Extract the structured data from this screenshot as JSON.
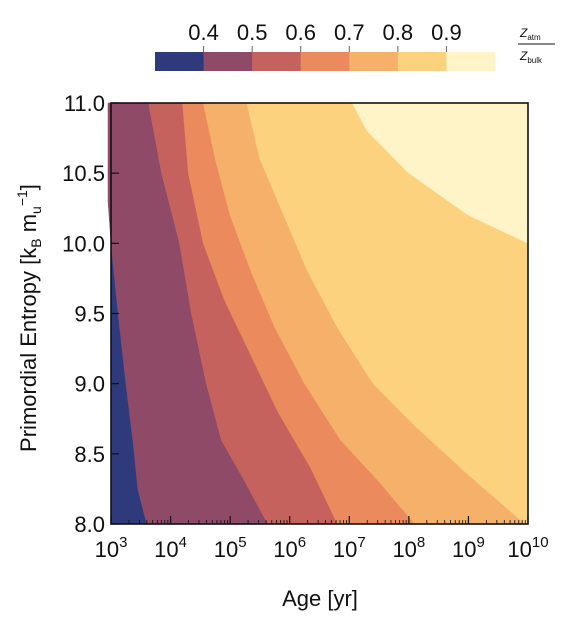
{
  "chart_data": {
    "type": "contourf",
    "xlabel": "Age [yr]",
    "ylabel_base": "Primordial Entropy [k",
    "ylabel_sub1": "B",
    "ylabel_mid": " m",
    "ylabel_sub2": "u",
    "ylabel_sup": "−1",
    "ylabel_end": "]",
    "x_scale": "log",
    "xlim": [
      1000,
      10000000000
    ],
    "ylim": [
      8.0,
      11.0
    ],
    "x_tick_base": "10",
    "x_tick_exponents": [
      "3",
      "4",
      "5",
      "6",
      "7",
      "8",
      "9",
      "10"
    ],
    "y_ticks": [
      "8.0",
      "8.5",
      "9.0",
      "9.5",
      "10.0",
      "10.5",
      "11.0"
    ],
    "colorbar": {
      "levels": [
        "0.4",
        "0.5",
        "0.6",
        "0.7",
        "0.8",
        "0.9"
      ],
      "colors": [
        "#2f3a7d",
        "#8e4a66",
        "#c6625d",
        "#eb8a5c",
        "#f5b06a",
        "#fcd27f",
        "#fff4c8"
      ],
      "label_num": "Z",
      "label_num_sub": "atm",
      "label_den": "Z",
      "label_den_sub": "bulk"
    },
    "boundaries": [
      {
        "level": "0.4",
        "points": [
          [
            8.0,
            3.6
          ],
          [
            8.25,
            3.45
          ],
          [
            8.55,
            3.38
          ],
          [
            9.0,
            3.25
          ],
          [
            9.5,
            3.12
          ],
          [
            10.0,
            3.0
          ],
          [
            10.3,
            2.95
          ],
          [
            10.5,
            2.95
          ],
          [
            11.0,
            2.95
          ]
        ]
      },
      {
        "level": "0.5",
        "points": [
          [
            8.0,
            5.63
          ],
          [
            8.3,
            5.25
          ],
          [
            8.6,
            4.85
          ],
          [
            9.0,
            4.6
          ],
          [
            9.5,
            4.35
          ],
          [
            10.0,
            4.15
          ],
          [
            10.5,
            3.85
          ],
          [
            11.0,
            3.63
          ]
        ]
      },
      {
        "level": "0.6",
        "points": [
          [
            8.0,
            6.8
          ],
          [
            8.4,
            6.35
          ],
          [
            8.8,
            5.8
          ],
          [
            9.2,
            5.35
          ],
          [
            9.6,
            4.9
          ],
          [
            10.0,
            4.55
          ],
          [
            10.5,
            4.3
          ],
          [
            11.0,
            4.2
          ]
        ]
      },
      {
        "level": "0.7",
        "points": [
          [
            8.0,
            8.1
          ],
          [
            8.3,
            7.5
          ],
          [
            8.6,
            6.85
          ],
          [
            9.0,
            6.25
          ],
          [
            9.4,
            5.75
          ],
          [
            9.8,
            5.35
          ],
          [
            10.2,
            5.0
          ],
          [
            10.6,
            4.75
          ],
          [
            11.0,
            4.55
          ]
        ]
      },
      {
        "level": "0.8",
        "points": [
          [
            8.0,
            9.95
          ],
          [
            8.35,
            9.0
          ],
          [
            8.7,
            8.1
          ],
          [
            9.0,
            7.4
          ],
          [
            9.4,
            6.8
          ],
          [
            9.8,
            6.3
          ],
          [
            10.2,
            5.9
          ],
          [
            10.6,
            5.5
          ],
          [
            11.0,
            5.28
          ]
        ]
      },
      {
        "level": "0.9",
        "points": [
          [
            10.0,
            10.0
          ],
          [
            10.2,
            9.0
          ],
          [
            10.5,
            8.0
          ],
          [
            10.8,
            7.3
          ],
          [
            11.0,
            7.05
          ]
        ]
      }
    ]
  }
}
